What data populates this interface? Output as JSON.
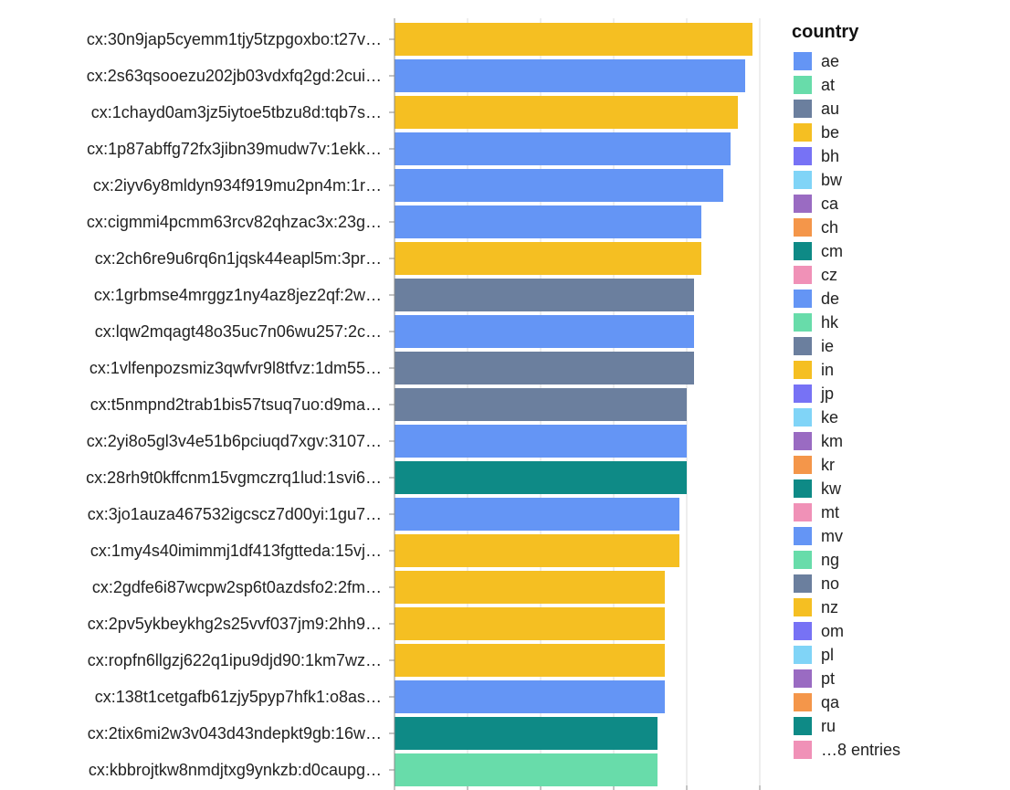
{
  "chart_data": {
    "type": "bar",
    "orientation": "horizontal",
    "categories": [
      "cx:30n9jap5cyemm1tjy5tzpgoxbo:t27v…",
      "cx:2s63qsooezu202jb03vdxfq2gd:2cui…",
      "cx:1chayd0am3jz5iytoe5tbzu8d:tqb7s…",
      "cx:1p87abffg72fx3jibn39mudw7v:1ekk…",
      "cx:2iyv6y8mldyn934f919mu2pn4m:1r…",
      "cx:cigmmi4pcmm63rcv82qhzac3x:23g…",
      "cx:2ch6re9u6rq6n1jqsk44eapl5m:3pr…",
      "cx:1grbmse4mrggz1ny4az8jez2qf:2w…",
      "cx:lqw2mqagt48o35uc7n06wu257:2c…",
      "cx:1vlfenpozsmiz3qwfvr9l8tfvz:1dm55…",
      "cx:t5nmpnd2trab1bis57tsuq7uo:d9ma…",
      "cx:2yi8o5gl3v4e51b6pciuqd7xgv:3107…",
      "cx:28rh9t0kffcnm15vgmczrq1lud:1svi6…",
      "cx:3jo1auza467532igcscz7d00yi:1gu7…",
      "cx:1my4s40imimmj1df413fgtteda:15vj…",
      "cx:2gdfe6i87wcpw2sp6t0azdsfo2:2fm…",
      "cx:2pv5ykbeykhg2s25vvf037jm9:2hh9…",
      "cx:ropfn6llgzj622q1ipu9djd90:1km7wz…",
      "cx:138t1cetgafb61zjy5pyp7hfk1:o8as…",
      "cx:2tix6mi2w3v043d43ndepkt9gb:16w…",
      "cx:kbbrojtkw8nmdjtxg9ynkzb:d0caupg…"
    ],
    "values": [
      49,
      48,
      47,
      46,
      45,
      42,
      42,
      41,
      41,
      41,
      40,
      40,
      40,
      39,
      39,
      37,
      37,
      37,
      37,
      36,
      36
    ],
    "bar_countries": [
      "in",
      "mv",
      "nz",
      "ae",
      "ae",
      "de",
      "nz",
      "ie",
      "mv",
      "no",
      "ie",
      "ae",
      "cm",
      "mv",
      "in",
      "nz",
      "nz",
      "nz",
      "mv",
      "ru",
      "ng"
    ],
    "xlim": [
      0,
      50
    ],
    "grid": true,
    "legend": {
      "title": "country",
      "placement": "right",
      "entries": [
        {
          "name": "ae",
          "color": "#6495f5"
        },
        {
          "name": "at",
          "color": "#68dcaa"
        },
        {
          "name": "au",
          "color": "#6b7f9e"
        },
        {
          "name": "be",
          "color": "#f5bf22"
        },
        {
          "name": "bh",
          "color": "#7772f5"
        },
        {
          "name": "bw",
          "color": "#80d4f7"
        },
        {
          "name": "ca",
          "color": "#9a6bc2"
        },
        {
          "name": "ch",
          "color": "#f4964a"
        },
        {
          "name": "cm",
          "color": "#0e8a86"
        },
        {
          "name": "cz",
          "color": "#f091b7"
        },
        {
          "name": "de",
          "color": "#6495f5"
        },
        {
          "name": "hk",
          "color": "#68dcaa"
        },
        {
          "name": "ie",
          "color": "#6b7f9e"
        },
        {
          "name": "in",
          "color": "#f5bf22"
        },
        {
          "name": "jp",
          "color": "#7772f5"
        },
        {
          "name": "ke",
          "color": "#80d4f7"
        },
        {
          "name": "km",
          "color": "#9a6bc2"
        },
        {
          "name": "kr",
          "color": "#f4964a"
        },
        {
          "name": "kw",
          "color": "#0e8a86"
        },
        {
          "name": "mt",
          "color": "#f091b7"
        },
        {
          "name": "mv",
          "color": "#6495f5"
        },
        {
          "name": "ng",
          "color": "#68dcaa"
        },
        {
          "name": "no",
          "color": "#6b7f9e"
        },
        {
          "name": "nz",
          "color": "#f5bf22"
        },
        {
          "name": "om",
          "color": "#7772f5"
        },
        {
          "name": "pl",
          "color": "#80d4f7"
        },
        {
          "name": "pt",
          "color": "#9a6bc2"
        },
        {
          "name": "qa",
          "color": "#f4964a"
        },
        {
          "name": "ru",
          "color": "#0e8a86"
        },
        {
          "name": "…8 entries",
          "color": "#f091b7"
        }
      ]
    }
  }
}
